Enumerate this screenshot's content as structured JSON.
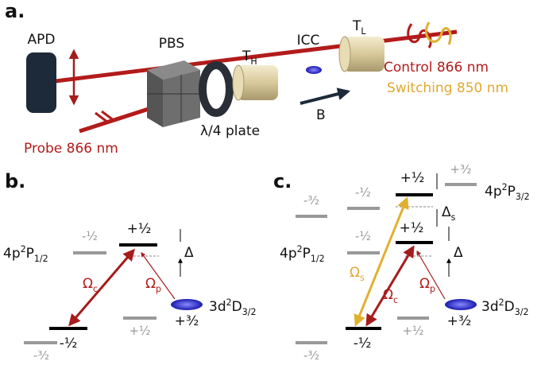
{
  "panel_a": {
    "label": "a.",
    "apd": "APD",
    "pbs": "PBS",
    "t_h": {
      "main": "T",
      "sub": "H"
    },
    "icc": "ICC",
    "t_l": {
      "main": "T",
      "sub": "L"
    },
    "control": "Control 866 nm",
    "switching": "Switching 850 nm",
    "b_field": "B",
    "waveplate": "λ/4 plate",
    "probe": "Probe 866 nm"
  },
  "panel_b": {
    "label": "b.",
    "p_level": {
      "main": "4p",
      "sup": "2",
      "mid": "P",
      "sub": "1/2"
    },
    "p_minus_half": "-½",
    "p_plus_half": "+½",
    "delta": "Δ",
    "s_minus_half": "-½",
    "s_plus_half": "+½",
    "s_minus_three_half": "-³⁄₂",
    "omega_c": {
      "main": "Ω",
      "sub": "c"
    },
    "omega_p": {
      "main": "Ω",
      "sub": "p"
    },
    "d_level": {
      "main": "3d",
      "sup": "2",
      "mid": "D",
      "sub": "3/2"
    },
    "d_sublevel": "+³⁄₂"
  },
  "panel_c": {
    "label": "c.",
    "p32_plus_half": "+½",
    "p32_plus_three_half": "+³⁄₂",
    "p32_level": {
      "main": "4p",
      "sup": "2",
      "mid": "P",
      "sub": "3/2"
    },
    "p32_minus_three_half": "-³⁄₂",
    "p32_minus_half": "-½",
    "delta_s": {
      "main": "Δ",
      "sub": "s"
    },
    "p_level": {
      "main": "4p",
      "sup": "2",
      "mid": "P",
      "sub": "1/2"
    },
    "p_minus_half": "-½",
    "p_plus_half": "+½",
    "delta": "Δ",
    "s_minus_half": "-½",
    "s_plus_half": "+½",
    "s_minus_three_half": "-³⁄₂",
    "omega_s": {
      "main": "Ω",
      "sub": "s"
    },
    "omega_c": {
      "main": "Ω",
      "sub": "c"
    },
    "omega_p": {
      "main": "Ω",
      "sub": "p"
    },
    "d_level": {
      "main": "3d",
      "sup": "2",
      "mid": "D",
      "sub": "3/2"
    },
    "d_sublevel": "+³⁄₂"
  }
}
